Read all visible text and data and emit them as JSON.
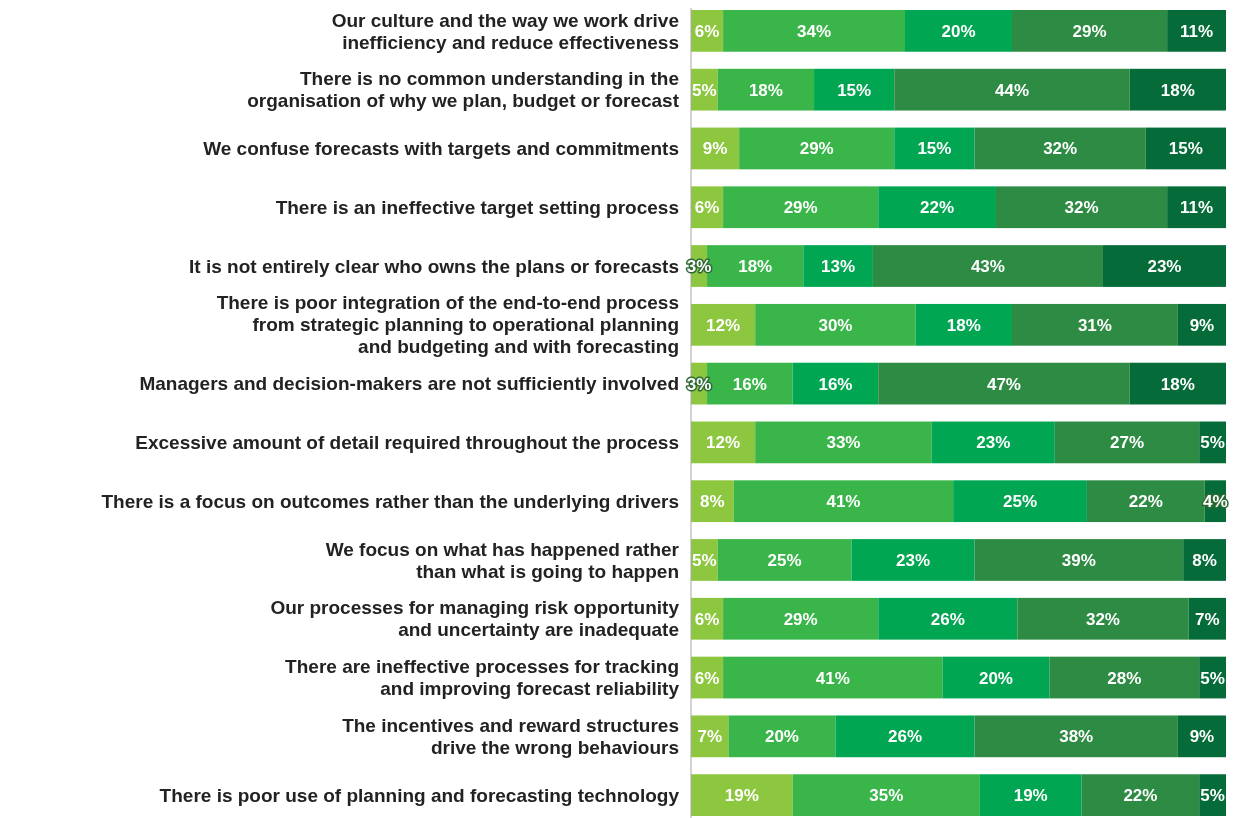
{
  "chart_data": {
    "type": "bar",
    "orientation": "horizontal",
    "stacked": true,
    "categories": [
      "Our culture and the way we work drive\ninefficiency and reduce effectiveness",
      "There is no common understanding in the\norganisation of why we plan, budget or forecast",
      "We confuse forecasts with targets and commitments",
      "There is an ineffective target setting process",
      "It is not entirely clear who owns the plans or forecasts",
      "There is poor integration of the end-to-end process\nfrom strategic planning to operational planning\nand budgeting and with forecasting",
      "Managers and decision-makers are not sufficiently involved",
      "Excessive amount of detail required throughout the process",
      "There is a focus on outcomes rather than the underlying drivers",
      "We focus on what has happened rather\nthan what is going to happen",
      "Our processes for managing risk opportunity\nand uncertainty are inadequate",
      "There are ineffective processes for tracking\nand improving forecast reliability",
      "The incentives and reward structures\ndrive the wrong behaviours",
      "There is poor use of planning and forecasting technology"
    ],
    "series": [
      {
        "color": "#8dc63f",
        "values": [
          6,
          5,
          9,
          6,
          3,
          12,
          3,
          12,
          8,
          5,
          6,
          6,
          7,
          19
        ],
        "value_labels": [
          "6%",
          "5%",
          "9%",
          "6%",
          "3%",
          "12%",
          "3%",
          "12%",
          "8%",
          "5%",
          "6%",
          "6%",
          "7%",
          "19%"
        ]
      },
      {
        "color": "#39b54a",
        "values": [
          34,
          18,
          29,
          29,
          18,
          30,
          16,
          33,
          41,
          25,
          29,
          41,
          20,
          35
        ],
        "value_labels": [
          "34%",
          "18%",
          "29%",
          "29%",
          "18%",
          "30%",
          "16%",
          "33%",
          "41%",
          "25%",
          "29%",
          "41%",
          "20%",
          "35%"
        ]
      },
      {
        "color": "#00a651",
        "values": [
          20,
          15,
          15,
          22,
          13,
          18,
          16,
          23,
          25,
          23,
          26,
          20,
          26,
          19
        ],
        "value_labels": [
          "20%",
          "15%",
          "15%",
          "22%",
          "13%",
          "18%",
          "16%",
          "23%",
          "25%",
          "23%",
          "26%",
          "20%",
          "26%",
          "19%"
        ]
      },
      {
        "color": "#2e8b44",
        "values": [
          29,
          44,
          32,
          32,
          43,
          31,
          47,
          27,
          22,
          39,
          32,
          28,
          38,
          22
        ],
        "value_labels": [
          "29%",
          "44%",
          "32%",
          "32%",
          "43%",
          "31%",
          "47%",
          "27%",
          "22%",
          "39%",
          "32%",
          "28%",
          "38%",
          "22%"
        ]
      },
      {
        "color": "#056b38",
        "values": [
          11,
          18,
          15,
          11,
          23,
          9,
          18,
          5,
          4,
          8,
          7,
          5,
          9,
          5
        ],
        "value_labels": [
          "11%",
          "18%",
          "15%",
          "11%",
          "23%",
          "9%",
          "18%",
          "5%",
          "4%",
          "8%",
          "7%",
          "5%",
          "9%",
          "5%"
        ]
      }
    ]
  }
}
